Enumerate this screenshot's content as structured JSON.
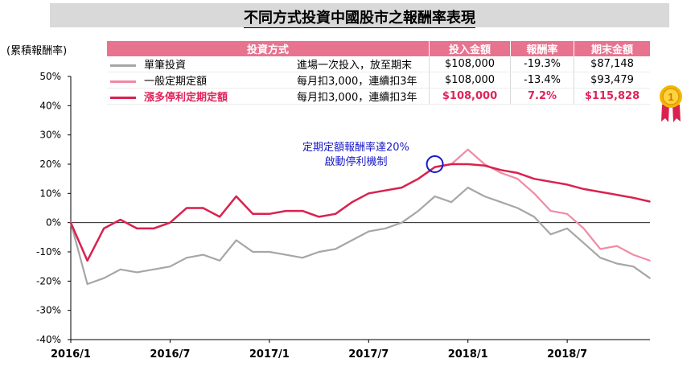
{
  "title": "不同方式投資中國股市之報酬率表現",
  "legend_table": {
    "headers": [
      "投資方式",
      "投入金額",
      "報酬率",
      "期末金額"
    ],
    "rows": [
      {
        "name": "單筆投資",
        "desc": "進場一次投入，放至期末",
        "invested": "$108,000",
        "return": "-19.3%",
        "final": "$87,148",
        "color": "#a6a6a6"
      },
      {
        "name": "一般定期定額",
        "desc": "每月扣3,000，連續扣3年",
        "invested": "$108,000",
        "return": "-13.4%",
        "final": "$93,479",
        "color": "#f08aa5"
      },
      {
        "name": "漲多停利定期定額",
        "desc": "每月扣3,000，連續扣3年",
        "invested": "$108,000",
        "return": "7.2%",
        "final": "$115,828",
        "color": "#d9224f"
      }
    ]
  },
  "annotation": {
    "line1": "定期定額報酬率達20%",
    "line2": "啟動停利機制",
    "at": {
      "x": "2017/11",
      "y": 20
    },
    "circle_color": "#1a1ac8"
  },
  "medal_icon": "gold-medal-icon",
  "chart_data": {
    "type": "line",
    "title": "不同方式投資中國股市之報酬率表現",
    "ylabel": "(累積報酬率)",
    "xlabel": "",
    "ylim": [
      -40,
      50
    ],
    "yticks": [
      -40,
      -30,
      -20,
      -10,
      0,
      10,
      20,
      30,
      40,
      50
    ],
    "ytick_labels": [
      "-40%",
      "-30%",
      "-20%",
      "-10%",
      "0%",
      "10%",
      "20%",
      "30%",
      "40%",
      "50%"
    ],
    "xlim": [
      "2016/1",
      "2018/12"
    ],
    "xticks": [
      "2016/1",
      "2016/7",
      "2017/1",
      "2017/7",
      "2018/1",
      "2018/7"
    ],
    "grid": false,
    "legend_position": "top",
    "series": [
      {
        "name": "單筆投資",
        "color": "#a6a6a6",
        "x": [
          "2016/1",
          "2016/2",
          "2016/3",
          "2016/4",
          "2016/5",
          "2016/6",
          "2016/7",
          "2016/8",
          "2016/9",
          "2016/10",
          "2016/11",
          "2016/12",
          "2017/1",
          "2017/2",
          "2017/3",
          "2017/4",
          "2017/5",
          "2017/6",
          "2017/7",
          "2017/8",
          "2017/9",
          "2017/10",
          "2017/11",
          "2017/12",
          "2018/1",
          "2018/2",
          "2018/3",
          "2018/4",
          "2018/5",
          "2018/6",
          "2018/7",
          "2018/8",
          "2018/9",
          "2018/10",
          "2018/11",
          "2018/12"
        ],
        "y": [
          0,
          -21,
          -19,
          -16,
          -17,
          -16,
          -15,
          -12,
          -11,
          -13,
          -6,
          -10,
          -10,
          -11,
          -12,
          -10,
          -9,
          -6,
          -3,
          -2,
          0,
          4,
          9,
          7,
          12,
          9,
          7,
          5,
          2,
          -4,
          -2,
          -7,
          -12,
          -14,
          -15,
          -19
        ]
      },
      {
        "name": "一般定期定額",
        "color": "#f08aa5",
        "x": [
          "2016/1",
          "2016/2",
          "2016/3",
          "2016/4",
          "2016/5",
          "2016/6",
          "2016/7",
          "2016/8",
          "2016/9",
          "2016/10",
          "2016/11",
          "2016/12",
          "2017/1",
          "2017/2",
          "2017/3",
          "2017/4",
          "2017/5",
          "2017/6",
          "2017/7",
          "2017/8",
          "2017/9",
          "2017/10",
          "2017/11",
          "2017/12",
          "2018/1",
          "2018/2",
          "2018/3",
          "2018/4",
          "2018/5",
          "2018/6",
          "2018/7",
          "2018/8",
          "2018/9",
          "2018/10",
          "2018/11",
          "2018/12"
        ],
        "y": [
          0,
          -13,
          -2,
          1,
          -2,
          -2,
          0,
          5,
          5,
          2,
          9,
          3,
          3,
          4,
          4,
          2,
          3,
          7,
          10,
          11,
          12,
          15,
          19,
          20,
          25,
          20,
          17,
          15,
          10,
          4,
          3,
          -2,
          -9,
          -8,
          -11,
          -13
        ]
      },
      {
        "name": "漲多停利定期定額",
        "color": "#d9224f",
        "x": [
          "2016/1",
          "2016/2",
          "2016/3",
          "2016/4",
          "2016/5",
          "2016/6",
          "2016/7",
          "2016/8",
          "2016/9",
          "2016/10",
          "2016/11",
          "2016/12",
          "2017/1",
          "2017/2",
          "2017/3",
          "2017/4",
          "2017/5",
          "2017/6",
          "2017/7",
          "2017/8",
          "2017/9",
          "2017/10",
          "2017/11",
          "2017/12",
          "2018/1",
          "2018/2",
          "2018/3",
          "2018/4",
          "2018/5",
          "2018/6",
          "2018/7",
          "2018/8",
          "2018/9",
          "2018/10",
          "2018/11",
          "2018/12"
        ],
        "y": [
          0,
          -13,
          -2,
          1,
          -2,
          -2,
          0,
          5,
          5,
          2,
          9,
          3,
          3,
          4,
          4,
          2,
          3,
          7,
          10,
          11,
          12,
          15,
          19,
          20,
          20,
          19.5,
          18,
          17,
          15,
          14,
          13,
          11.5,
          10.5,
          9.5,
          8.5,
          7.2
        ]
      }
    ]
  }
}
